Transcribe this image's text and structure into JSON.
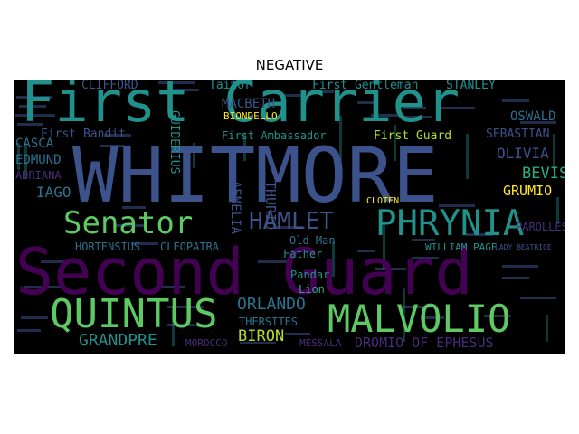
{
  "title": "NEGATIVE",
  "words": [
    {
      "text": "Second Guard",
      "color": "#440154"
    },
    {
      "text": "WHITMORE",
      "color": "#3b528b"
    },
    {
      "text": "First Carrier",
      "color": "#21918c"
    },
    {
      "text": "PHRYNIA",
      "color": "#21918c"
    },
    {
      "text": "MALVOLIO",
      "color": "#5ec962"
    },
    {
      "text": "QUINTUS",
      "color": "#5ec962"
    },
    {
      "text": "Senator",
      "color": "#5ec962"
    },
    {
      "text": "HAMLET",
      "color": "#3b528b"
    },
    {
      "text": "ORLANDO",
      "color": "#2c728e"
    },
    {
      "text": "GRANDPRE",
      "color": "#21918c"
    },
    {
      "text": "DROMIO OF EPHESUS",
      "color": "#472d7b"
    },
    {
      "text": "BIRON",
      "color": "#b5de2b"
    },
    {
      "text": "OLIVIA",
      "color": "#3b528b"
    },
    {
      "text": "BEVIS",
      "color": "#28ae80"
    },
    {
      "text": "GRUMIO",
      "color": "#fde725"
    },
    {
      "text": "PAROLLES",
      "color": "#472d7b"
    },
    {
      "text": "IAGO",
      "color": "#2c728e"
    },
    {
      "text": "CASCA",
      "color": "#2c728e"
    },
    {
      "text": "EDMUND",
      "color": "#2c728e"
    },
    {
      "text": "ADRIANA",
      "color": "#472d7b"
    },
    {
      "text": "First Bandit",
      "color": "#3b528b"
    },
    {
      "text": "First Ambassador",
      "color": "#21918c"
    },
    {
      "text": "First Guard",
      "color": "#b5de2b"
    },
    {
      "text": "First Gentleman",
      "color": "#21918c"
    },
    {
      "text": "STANLEY",
      "color": "#21918c"
    },
    {
      "text": "SEBASTIAN",
      "color": "#3b528b"
    },
    {
      "text": "OSWALD",
      "color": "#2c728e"
    },
    {
      "text": "CLIFFORD",
      "color": "#3b528b"
    },
    {
      "text": "MACBETH",
      "color": "#3b528b"
    },
    {
      "text": "Tailor",
      "color": "#21918c"
    },
    {
      "text": "BIONDELLO",
      "color": "#fde725"
    },
    {
      "text": "THURIO",
      "color": "#3b528b"
    },
    {
      "text": "AEMELIA",
      "color": "#3b528b"
    },
    {
      "text": "GUIDERIUS",
      "color": "#21918c"
    },
    {
      "text": "HORTENSIUS",
      "color": "#2c728e"
    },
    {
      "text": "CLEOPATRA",
      "color": "#2c728e"
    },
    {
      "text": "Old Man",
      "color": "#2c728e"
    },
    {
      "text": "Father",
      "color": "#21918c"
    },
    {
      "text": "Pandar",
      "color": "#21918c"
    },
    {
      "text": "Lion",
      "color": "#28ae80"
    },
    {
      "text": "THERSITES",
      "color": "#2c728e"
    },
    {
      "text": "MOROCCO",
      "color": "#472d7b"
    },
    {
      "text": "MESSALA",
      "color": "#472d7b"
    },
    {
      "text": "WILLIAM PAGE",
      "color": "#21918c"
    },
    {
      "text": "CLOTEN",
      "color": "#fde725"
    },
    {
      "text": "LADY BEATRICE",
      "color": "#3b528b"
    }
  ]
}
